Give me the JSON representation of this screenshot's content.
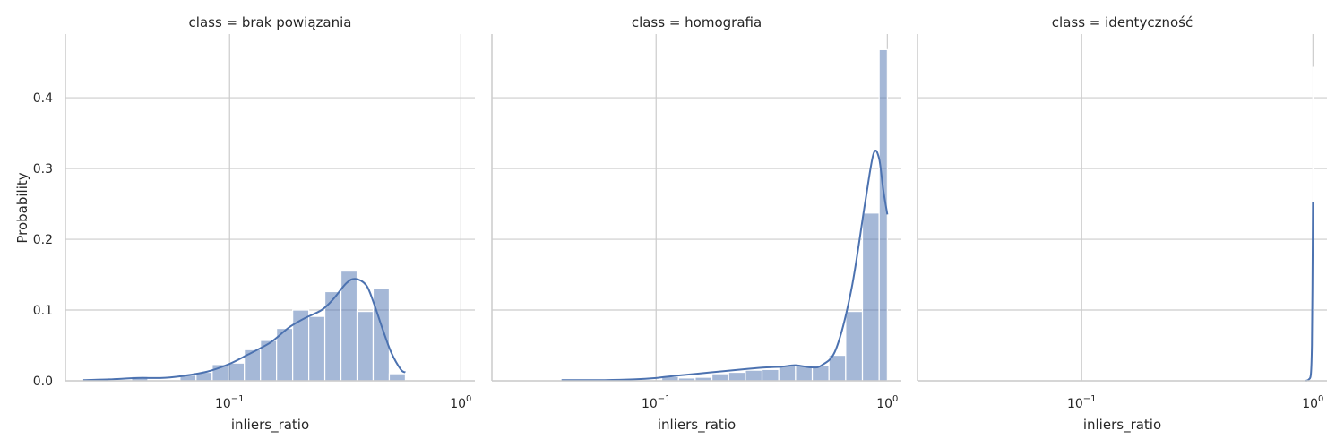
{
  "chart_data": {
    "type": "bar",
    "layout": "facet-grid",
    "shared_y": true,
    "x_scale": "log",
    "ylabel": "Probability",
    "ylim": [
      0,
      0.49
    ],
    "yticks": [
      0.0,
      0.1,
      0.2,
      0.3,
      0.4
    ],
    "ytick_labels": [
      "0.0",
      "0.1",
      "0.2",
      "0.3",
      "0.4"
    ],
    "grid": true,
    "colors": {
      "bars": "#4c72b0",
      "line": "#4c72b0",
      "grid": "#cccccc"
    },
    "panels": [
      {
        "title": "class = brak powiązania",
        "xlabel": "inliers_ratio",
        "xlim": [
          0.0195,
          1.15
        ],
        "xticks": [
          0.1,
          1
        ],
        "xtick_labels": [
          {
            "base": "10",
            "exp": "−1"
          },
          {
            "base": "10",
            "exp": "0"
          }
        ],
        "series": [
          {
            "kind": "histogram",
            "bin_edges": [
              0.0233,
              0.0274,
              0.0321,
              0.0377,
              0.0443,
              0.052,
              0.061,
              0.0716,
              0.0841,
              0.0987,
              0.1158,
              0.136,
              0.1596,
              0.1874,
              0.22,
              0.2582,
              0.3031,
              0.3559,
              0.4177,
              0.4904,
              0.5756
            ],
            "values": [
              0.0,
              0.0,
              0.0,
              0.006,
              0.0,
              0.0,
              0.008,
              0.012,
              0.023,
              0.025,
              0.044,
              0.057,
              0.074,
              0.1,
              0.091,
              0.126,
              0.155,
              0.098,
              0.13,
              0.01
            ]
          },
          {
            "kind": "kde",
            "x": [
              0.0233,
              0.03,
              0.04,
              0.05,
              0.06,
              0.08,
              0.1,
              0.12,
              0.15,
              0.18,
              0.21,
              0.25,
              0.28,
              0.32,
              0.35,
              0.39,
              0.42,
              0.46,
              0.5,
              0.55,
              0.5756
            ],
            "y": [
              0.001,
              0.002,
              0.004,
              0.004,
              0.006,
              0.013,
              0.024,
              0.037,
              0.054,
              0.075,
              0.088,
              0.1,
              0.115,
              0.138,
              0.144,
              0.135,
              0.11,
              0.072,
              0.04,
              0.016,
              0.012
            ]
          }
        ]
      },
      {
        "title": "class = homografia",
        "xlabel": "inliers_ratio",
        "xlim": [
          0.0195,
          1.15
        ],
        "xticks": [
          0.1,
          1
        ],
        "xtick_labels": [
          {
            "base": "10",
            "exp": "−1"
          },
          {
            "base": "10",
            "exp": "0"
          }
        ],
        "series": [
          {
            "kind": "histogram",
            "bin_edges": [
              0.039,
              0.046,
              0.0544,
              0.0642,
              0.0758,
              0.0896,
              0.1058,
              0.125,
              0.1476,
              0.1744,
              0.206,
              0.2433,
              0.2873,
              0.3394,
              0.4009,
              0.4735,
              0.5593,
              0.6606,
              0.7803,
              0.9217,
              1.0
            ],
            "values": [
              0.002,
              0.0,
              0.0,
              0.0,
              0.0,
              0.0,
              0.006,
              0.004,
              0.005,
              0.01,
              0.012,
              0.015,
              0.016,
              0.022,
              0.022,
              0.022,
              0.036,
              0.098,
              0.237,
              0.468
            ]
          },
          {
            "kind": "kde",
            "x": [
              0.039,
              0.06,
              0.08,
              0.1,
              0.12,
              0.15,
              0.2,
              0.25,
              0.3,
              0.35,
              0.4,
              0.47,
              0.52,
              0.6,
              0.7,
              0.8,
              0.87,
              0.92,
              0.96,
              1.0
            ],
            "y": [
              0.001,
              0.001,
              0.002,
              0.004,
              0.007,
              0.01,
              0.014,
              0.017,
              0.019,
              0.02,
              0.022,
              0.019,
              0.022,
              0.045,
              0.13,
              0.25,
              0.32,
              0.315,
              0.27,
              0.235
            ]
          }
        ]
      },
      {
        "title": "class = identyczność",
        "xlabel": "inliers_ratio",
        "xlim": [
          0.0195,
          1.15
        ],
        "xticks": [
          0.1,
          1
        ],
        "xtick_labels": [
          {
            "base": "10",
            "exp": "−1"
          },
          {
            "base": "10",
            "exp": "0"
          }
        ],
        "series": [
          {
            "kind": "histogram",
            "bin_edges": [
              0.999,
              1.0
            ],
            "values": [
              0.443
            ]
          },
          {
            "kind": "kde",
            "x": [
              0.93,
              0.96,
              0.98,
              0.99,
              0.995,
              1.0
            ],
            "y": [
              0.0,
              0.002,
              0.01,
              0.05,
              0.13,
              0.253
            ]
          }
        ]
      }
    ]
  }
}
